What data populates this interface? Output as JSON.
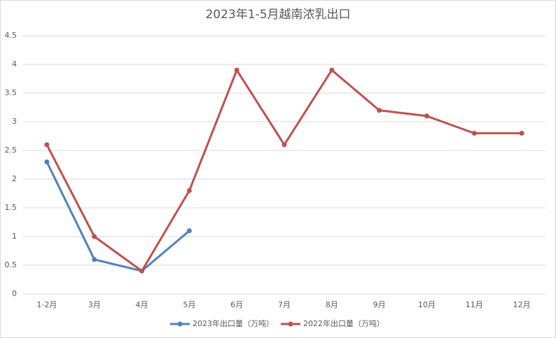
{
  "chart_data": {
    "type": "line",
    "title": "2023年1-5月越南浓乳出口",
    "categories": [
      "1-2月",
      "3月",
      "4月",
      "5月",
      "6月",
      "7月",
      "8月",
      "9月",
      "10月",
      "11月",
      "12月"
    ],
    "series": [
      {
        "name": "2023年出口量（万吨）",
        "color": "#4f81bd",
        "values": [
          2.3,
          0.6,
          0.4,
          1.1,
          null,
          null,
          null,
          null,
          null,
          null,
          null
        ]
      },
      {
        "name": "2022年出口量（万吨）",
        "color": "#c0504d",
        "values": [
          2.6,
          1.0,
          0.4,
          1.8,
          3.9,
          2.6,
          3.9,
          3.2,
          3.1,
          2.8,
          2.8
        ]
      }
    ],
    "ylim": [
      0,
      4.5
    ],
    "yticks": [
      0,
      0.5,
      1,
      1.5,
      2,
      2.5,
      3,
      3.5,
      4,
      4.5
    ],
    "grid": true,
    "legend": "bottom"
  }
}
